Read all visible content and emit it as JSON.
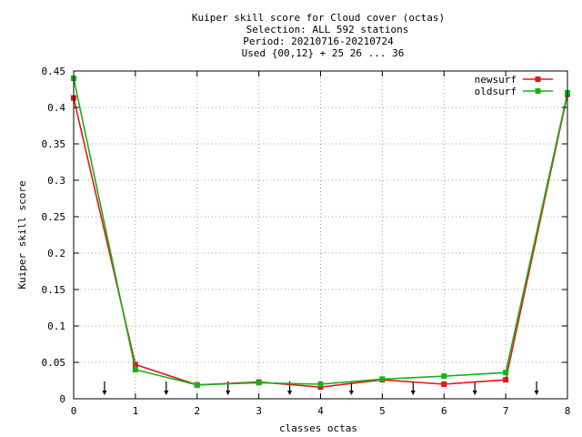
{
  "chart_data": {
    "type": "line",
    "title_lines": [
      "Kuiper skill score  for Cloud cover (octas)",
      "Selection: ALL    592 stations",
      "Period: 20210716-20210724",
      "Used {00,12} + 25 26 ... 36"
    ],
    "xlabel": "classes octas",
    "ylabel": "Kuiper skill score",
    "xlim": [
      0,
      8
    ],
    "ylim": [
      0,
      0.45
    ],
    "x_ticks": [
      0,
      1,
      2,
      3,
      4,
      5,
      6,
      7,
      8
    ],
    "x_tick_labels": [
      "0",
      "1",
      "2",
      "3",
      "4",
      "5",
      "6",
      "7",
      "8"
    ],
    "y_ticks": [
      0,
      0.05,
      0.1,
      0.15,
      0.2,
      0.25,
      0.3,
      0.35,
      0.4,
      0.45
    ],
    "y_tick_labels": [
      "0",
      "0.05",
      "0.1",
      "0.15",
      "0.2",
      "0.25",
      "0.3",
      "0.35",
      "0.4",
      "0.45"
    ],
    "grid": true,
    "legend_position": "top-right",
    "arrow_markers_x": [
      0.5,
      1.5,
      2.5,
      3.5,
      4.5,
      5.5,
      6.5,
      7.5
    ],
    "series": [
      {
        "name": "newsurf",
        "color": "#e8141a",
        "x": [
          0,
          1,
          2,
          3,
          4,
          5,
          6,
          7,
          8
        ],
        "values": [
          0.413,
          0.047,
          0.019,
          0.023,
          0.016,
          0.026,
          0.02,
          0.026,
          0.418
        ]
      },
      {
        "name": "oldsurf",
        "color": "#17b117",
        "x": [
          0,
          1,
          2,
          3,
          4,
          5,
          6,
          7,
          8
        ],
        "values": [
          0.44,
          0.04,
          0.019,
          0.022,
          0.02,
          0.027,
          0.031,
          0.036,
          0.42
        ]
      }
    ]
  }
}
